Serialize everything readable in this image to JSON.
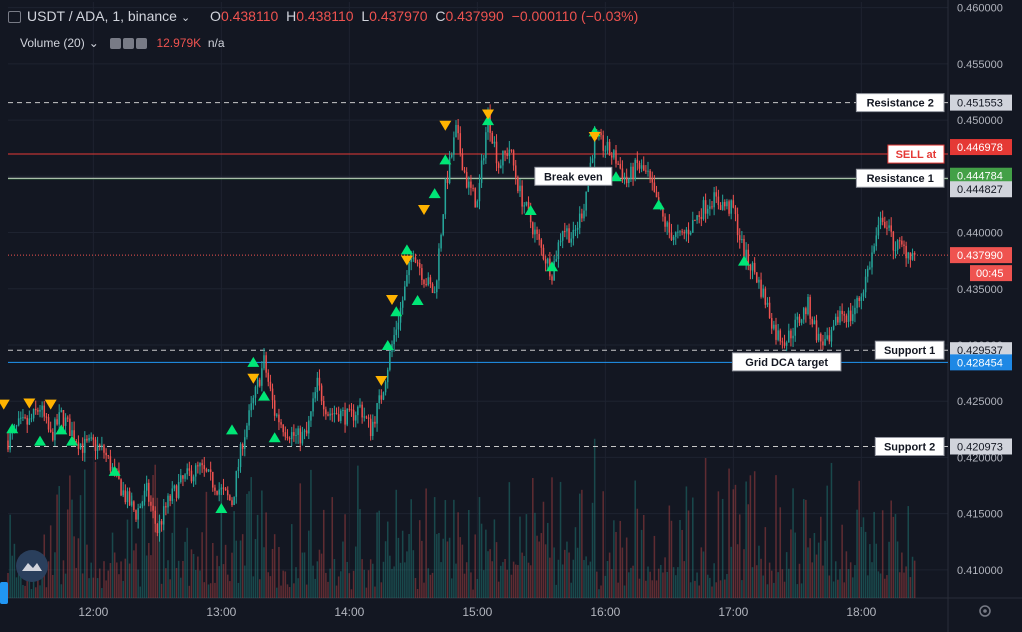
{
  "header": {
    "symbol": "USDT / ADA, 1, binance",
    "open_label": "O",
    "open": "0.438110",
    "high_label": "H",
    "high": "0.438110",
    "low_label": "L",
    "low": "0.437970",
    "close_label": "C",
    "close": "0.437990",
    "change": "−0.000110 (−0.03%)",
    "volume_label": "Volume (20)",
    "volume_value": "12.979K",
    "volume_na": "n/a"
  },
  "colors": {
    "background": "#131722",
    "grid": "#1e2330",
    "up": "#26a69a",
    "down": "#ef5350",
    "resistance_line": "#c9c9c9",
    "sell_line": "#e53935",
    "green_line": "#43a047",
    "blue_line": "#2196f3",
    "buy_marker": "#00e676",
    "sell_marker": "#ffb300"
  },
  "chart_data": {
    "type": "candlestick",
    "x_ticks": [
      "12:00",
      "13:00",
      "14:00",
      "15:00",
      "16:00",
      "17:00",
      "18:00"
    ],
    "y_ticks": [
      "0.460000",
      "0.455000",
      "0.450000",
      "0.445000",
      "0.440000",
      "0.435000",
      "0.430000",
      "0.425000",
      "0.420000",
      "0.415000",
      "0.410000"
    ],
    "ylim": [
      0.4075,
      0.4605
    ],
    "x_start": "11:20",
    "x_end": "18:35",
    "current_price": "0.437990",
    "countdown": "00:45",
    "close_path": [
      [
        "11:20",
        0.4215
      ],
      [
        "11:25",
        0.4228
      ],
      [
        "11:30",
        0.4231
      ],
      [
        "11:35",
        0.4245
      ],
      [
        "11:40",
        0.4218
      ],
      [
        "11:45",
        0.4238
      ],
      [
        "11:50",
        0.4222
      ],
      [
        "11:55",
        0.421
      ],
      [
        "12:00",
        0.4212
      ],
      [
        "12:05",
        0.4205
      ],
      [
        "12:10",
        0.4185
      ],
      [
        "12:15",
        0.4165
      ],
      [
        "12:20",
        0.415
      ],
      [
        "12:25",
        0.417
      ],
      [
        "12:30",
        0.4135
      ],
      [
        "12:35",
        0.416
      ],
      [
        "12:40",
        0.4175
      ],
      [
        "12:45",
        0.4185
      ],
      [
        "12:50",
        0.419
      ],
      [
        "12:55",
        0.418
      ],
      [
        "13:00",
        0.417
      ],
      [
        "13:05",
        0.416
      ],
      [
        "13:10",
        0.4215
      ],
      [
        "13:15",
        0.425
      ],
      [
        "13:20",
        0.4285
      ],
      [
        "13:25",
        0.424
      ],
      [
        "13:30",
        0.4225
      ],
      [
        "13:35",
        0.4218
      ],
      [
        "13:40",
        0.422
      ],
      [
        "13:45",
        0.4265
      ],
      [
        "13:50",
        0.424
      ],
      [
        "13:55",
        0.424
      ],
      [
        "14:00",
        0.4235
      ],
      [
        "14:05",
        0.4245
      ],
      [
        "14:10",
        0.4225
      ],
      [
        "14:15",
        0.4255
      ],
      [
        "14:20",
        0.43
      ],
      [
        "14:25",
        0.434
      ],
      [
        "14:30",
        0.4385
      ],
      [
        "14:35",
        0.436
      ],
      [
        "14:40",
        0.4345
      ],
      [
        "14:45",
        0.444
      ],
      [
        "14:50",
        0.449
      ],
      [
        "14:55",
        0.4445
      ],
      [
        "15:00",
        0.4425
      ],
      [
        "15:05",
        0.4505
      ],
      [
        "15:10",
        0.446
      ],
      [
        "15:15",
        0.4475
      ],
      [
        "15:20",
        0.4435
      ],
      [
        "15:25",
        0.441
      ],
      [
        "15:30",
        0.4385
      ],
      [
        "15:35",
        0.4365
      ],
      [
        "15:40",
        0.4405
      ],
      [
        "15:45",
        0.4395
      ],
      [
        "15:50",
        0.4425
      ],
      [
        "15:55",
        0.4485
      ],
      [
        "16:00",
        0.4475
      ],
      [
        "16:05",
        0.4465
      ],
      [
        "16:10",
        0.4445
      ],
      [
        "16:15",
        0.446
      ],
      [
        "16:20",
        0.445
      ],
      [
        "16:25",
        0.442
      ],
      [
        "16:30",
        0.44
      ],
      [
        "16:35",
        0.4395
      ],
      [
        "16:40",
        0.4405
      ],
      [
        "16:45",
        0.442
      ],
      [
        "16:50",
        0.443
      ],
      [
        "16:55",
        0.4425
      ],
      [
        "17:00",
        0.442
      ],
      [
        "17:05",
        0.438
      ],
      [
        "17:10",
        0.4365
      ],
      [
        "17:15",
        0.434
      ],
      [
        "17:20",
        0.431
      ],
      [
        "17:25",
        0.4305
      ],
      [
        "17:30",
        0.432
      ],
      [
        "17:35",
        0.4335
      ],
      [
        "17:40",
        0.4305
      ],
      [
        "17:45",
        0.43
      ],
      [
        "17:50",
        0.433
      ],
      [
        "17:55",
        0.4325
      ],
      [
        "18:00",
        0.4345
      ],
      [
        "18:05",
        0.438
      ],
      [
        "18:10",
        0.4415
      ],
      [
        "18:15",
        0.439
      ],
      [
        "18:20",
        0.4385
      ],
      [
        "18:25",
        0.438
      ]
    ],
    "horizontal_lines": [
      {
        "label": "Resistance 2",
        "price": "0.451553",
        "style": "dashed",
        "color": "#c9c9c9"
      },
      {
        "label": "SELL at",
        "price": "0.446978",
        "style": "solid",
        "color": "#e53935"
      },
      {
        "label": "",
        "price": "0.444784",
        "style": "solid",
        "color": "#43a047"
      },
      {
        "label": "Resistance 1",
        "price": "0.444827",
        "style": "solid",
        "color": "#c9c9c9"
      },
      {
        "label": "Support 1",
        "price": "0.429537",
        "style": "dashed",
        "color": "#c9c9c9"
      },
      {
        "label": "",
        "price": "0.428454",
        "style": "solid",
        "color": "#2196f3"
      },
      {
        "label": "Support 2",
        "price": "0.420973",
        "style": "dashed",
        "color": "#c9c9c9"
      }
    ],
    "annotations": [
      {
        "label": "Break even",
        "time": "15:45",
        "price": 0.445
      },
      {
        "label": "Grid DCA target",
        "time": "17:25",
        "price": 0.4285
      }
    ],
    "buy_signals": [
      [
        "11:22",
        0.4226
      ],
      [
        "11:35",
        0.4215
      ],
      [
        "11:45",
        0.4225
      ],
      [
        "11:50",
        0.4215
      ],
      [
        "12:10",
        0.4188
      ],
      [
        "13:00",
        0.4155
      ],
      [
        "13:05",
        0.4225
      ],
      [
        "13:15",
        0.4285
      ],
      [
        "13:20",
        0.4255
      ],
      [
        "13:25",
        0.4218
      ],
      [
        "14:18",
        0.43
      ],
      [
        "14:22",
        0.433
      ],
      [
        "14:27",
        0.4385
      ],
      [
        "14:32",
        0.434
      ],
      [
        "14:40",
        0.4435
      ],
      [
        "14:45",
        0.4465
      ],
      [
        "15:05",
        0.45
      ],
      [
        "15:25",
        0.442
      ],
      [
        "15:35",
        0.437
      ],
      [
        "15:55",
        0.449
      ],
      [
        "16:05",
        0.445
      ],
      [
        "16:25",
        0.4425
      ],
      [
        "17:05",
        0.4375
      ]
    ],
    "sell_signals": [
      [
        "11:18",
        0.4247
      ],
      [
        "11:30",
        0.4248
      ],
      [
        "11:40",
        0.4247
      ],
      [
        "13:15",
        0.427
      ],
      [
        "14:15",
        0.4268
      ],
      [
        "14:20",
        0.434
      ],
      [
        "14:27",
        0.4375
      ],
      [
        "14:35",
        0.442
      ],
      [
        "14:45",
        0.4495
      ],
      [
        "15:05",
        0.4505
      ],
      [
        "15:55",
        0.4485
      ]
    ],
    "price_labels": [
      {
        "text": "0.451553",
        "price": 0.451553,
        "bg": "#d1d4dc",
        "fg": "#131722"
      },
      {
        "text": "0.446978",
        "price": 0.446978,
        "bg": "#e53935",
        "fg": "#ffffff"
      },
      {
        "text": "0.444784",
        "price": 0.444784,
        "bg": "#43a047",
        "fg": "#ffffff"
      },
      {
        "text": "0.444827",
        "price": 0.444827,
        "bg": "#d1d4dc",
        "fg": "#131722"
      },
      {
        "text": "0.437990",
        "price": 0.43799,
        "bg": "#ef5350",
        "fg": "#ffffff"
      },
      {
        "text": "0.429537",
        "price": 0.429537,
        "bg": "#d1d4dc",
        "fg": "#131722"
      },
      {
        "text": "0.428454",
        "price": 0.428454,
        "bg": "#1e88e5",
        "fg": "#ffffff"
      },
      {
        "text": "0.420973",
        "price": 0.420973,
        "bg": "#d1d4dc",
        "fg": "#131722"
      }
    ],
    "grid": true
  }
}
